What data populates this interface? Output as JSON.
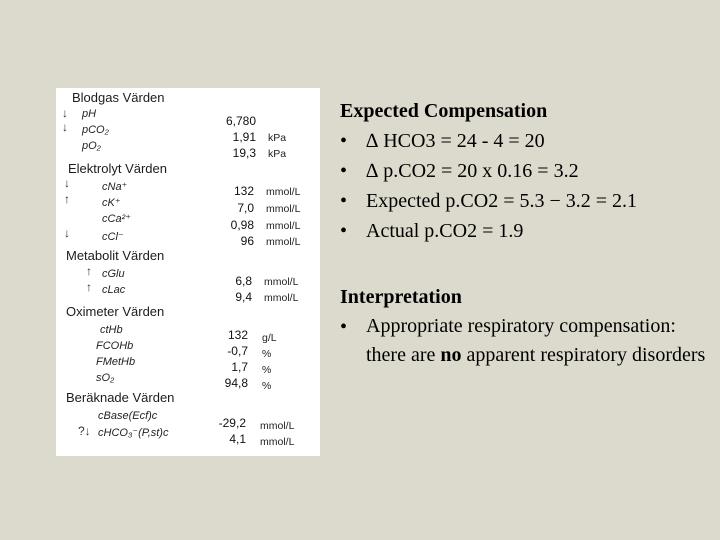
{
  "report": {
    "sections": [
      {
        "title": "Blodgas Värden",
        "rows": [
          {
            "mark": "↓",
            "param": "pH",
            "value": "6,780",
            "unit": ""
          },
          {
            "mark": "↓",
            "param": "pCO₂",
            "value": "1,91",
            "unit": "kPa"
          },
          {
            "mark": "",
            "param": "pO₂",
            "value": "19,3",
            "unit": "kPa"
          }
        ]
      },
      {
        "title": "Elektrolyt Värden",
        "rows": [
          {
            "mark": "↓",
            "param": "cNa⁺",
            "value": "132",
            "unit": "mmol/L"
          },
          {
            "mark": "↑",
            "param": "cK⁺",
            "value": "7,0",
            "unit": "mmol/L"
          },
          {
            "mark": "",
            "param": "cCa²⁺",
            "value": "0,98",
            "unit": "mmol/L"
          },
          {
            "mark": "↓",
            "param": "cCl⁻",
            "value": "96",
            "unit": "mmol/L"
          }
        ]
      },
      {
        "title": "Metabolit Värden",
        "rows": [
          {
            "mark": "↑",
            "param": "cGlu",
            "value": "6,8",
            "unit": "mmol/L"
          },
          {
            "mark": "↑",
            "param": "cLac",
            "value": "9,4",
            "unit": "mmol/L"
          }
        ]
      },
      {
        "title": "Oximeter Värden",
        "rows": [
          {
            "mark": "",
            "param": "ctHb",
            "value": "132",
            "unit": "g/L"
          },
          {
            "mark": "",
            "param": "FCOHb",
            "value": "-0,7",
            "unit": "%"
          },
          {
            "mark": "",
            "param": "FMetHb",
            "value": "1,7",
            "unit": "%"
          },
          {
            "mark": "",
            "param": "sO₂",
            "value": "94,8",
            "unit": "%"
          }
        ]
      },
      {
        "title": "Beräknade Värden",
        "rows": [
          {
            "mark": "",
            "param": "cBase(Ecf)c",
            "value": "-29,2",
            "unit": "mmol/L"
          },
          {
            "mark": "?↓",
            "param": "cHCO₃⁻(P,st)c",
            "value": "4,1",
            "unit": "mmol/L"
          }
        ]
      }
    ]
  },
  "expected": {
    "title": "Expected Compensation",
    "bullets": [
      "∆ HCO3 = 24 - 4 = 20",
      "∆ p.CO2 = 20 x 0.16 = 3.2",
      "Expected p.CO2 = 5.3 − 3.2 = 2.1",
      "Actual p.CO2 = 1.9"
    ]
  },
  "interpretation": {
    "title": "Interpretation",
    "bullet_pre": "Appropriate respiratory compensation:  there are ",
    "bullet_bold": "no",
    "bullet_post": " apparent respiratory disorders"
  },
  "bullet_symbol": "•"
}
